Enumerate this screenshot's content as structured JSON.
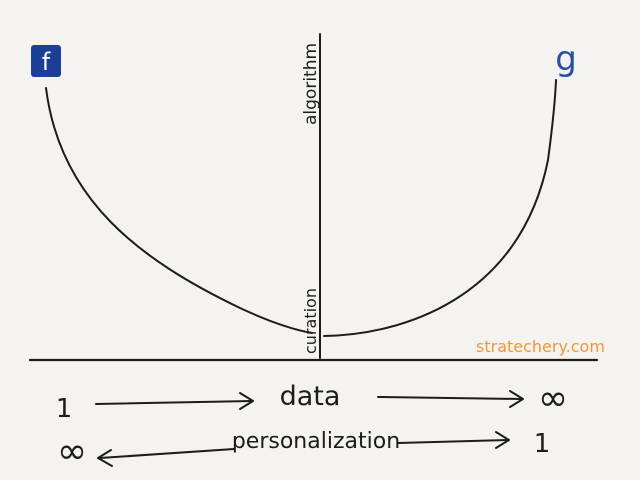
{
  "left_logo": {
    "letter": "f",
    "icon": "facebook-icon",
    "color": "#1b3f95"
  },
  "right_logo": {
    "letter": "g",
    "icon": "google-icon",
    "color": "#2a4fa0"
  },
  "axis_top_label": "algorithm",
  "axis_bottom_label": "curation",
  "watermark": "stratechery.com",
  "data_row": {
    "start": "1",
    "label": "data",
    "end": "∞"
  },
  "personalization_row": {
    "start": "∞",
    "label": "personalization",
    "end": "1"
  },
  "colors": {
    "ink": "#1c1c1c",
    "watermark": "#f0963a",
    "background": "#f4f3ef"
  }
}
